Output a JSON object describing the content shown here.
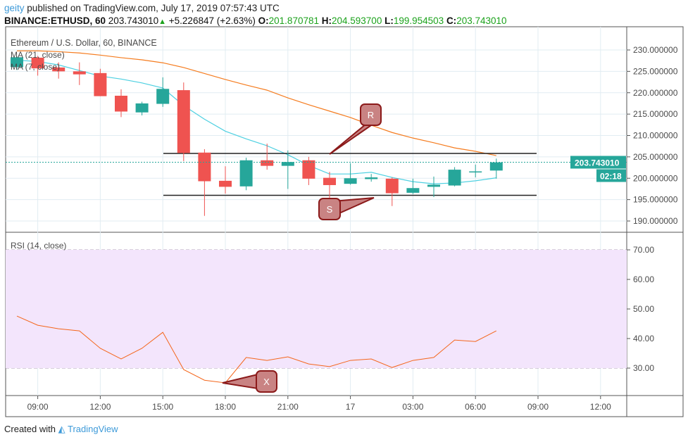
{
  "header": {
    "user": "geity",
    "published": "published on TradingView.com, July 17, 2019 07:57:43 UTC",
    "symbol": "BINANCE:ETHUSD, 60",
    "last": "203.743010",
    "change": "+5.226847 (+2.63%)",
    "o_label": "O:",
    "o": "201.870781",
    "h_label": "H:",
    "h": "204.593700",
    "l_label": "L:",
    "l": "199.954503",
    "c_label": "C:",
    "c": "203.743010"
  },
  "footer": {
    "created_with": "Created with",
    "brand": "TradingView"
  },
  "colors": {
    "up": "#26a69a",
    "down": "#ef5350",
    "ma21": "#f57c1f",
    "ma7": "#4dd0e1",
    "rsi": "#f4661b",
    "rsi_band": "#f3e5fc",
    "callout": "#c98383",
    "callout_border": "#8b1a1a"
  },
  "chart_data": [
    {
      "type": "candlestick",
      "title": "Ethereum / U.S. Dollar, 60, BINANCE",
      "legend": [
        "MA (21, close)",
        "MA (7, close)"
      ],
      "x": [
        "08:00",
        "09:00",
        "10:00",
        "11:00",
        "12:00",
        "13:00",
        "14:00",
        "15:00",
        "16:00",
        "17:00",
        "18:00",
        "19:00",
        "20:00",
        "21:00",
        "22:00",
        "23:00",
        "00:00",
        "01:00",
        "02:00",
        "03:00",
        "04:00",
        "05:00",
        "06:00",
        "07:00"
      ],
      "x_ticks": [
        "09:00",
        "12:00",
        "15:00",
        "18:00",
        "21:00",
        "17",
        "03:00",
        "06:00",
        "09:00",
        "12:00"
      ],
      "ohlc": [
        [
          226.0,
          228.5,
          225.3,
          228.3
        ],
        [
          228.2,
          228.6,
          224.0,
          225.7
        ],
        [
          225.9,
          227.1,
          223.3,
          225.0
        ],
        [
          225.0,
          227.1,
          221.8,
          224.3
        ],
        [
          224.6,
          225.6,
          219.2,
          219.2
        ],
        [
          219.3,
          220.8,
          214.3,
          215.6
        ],
        [
          215.4,
          217.9,
          214.7,
          217.5
        ],
        [
          217.4,
          223.6,
          216.7,
          220.9
        ],
        [
          220.6,
          222.4,
          204.0,
          205.9
        ],
        [
          206.0,
          206.8,
          191.2,
          199.3
        ],
        [
          199.4,
          202.8,
          196.4,
          198.0
        ],
        [
          198.1,
          204.8,
          197.2,
          204.2
        ],
        [
          204.2,
          208.1,
          202.0,
          202.9
        ],
        [
          202.9,
          206.5,
          197.5,
          203.8
        ],
        [
          204.2,
          205.0,
          198.4,
          199.9
        ],
        [
          200.1,
          201.5,
          195.3,
          198.4
        ],
        [
          198.7,
          203.5,
          198.5,
          200.0
        ],
        [
          199.8,
          201.0,
          199.2,
          200.2
        ],
        [
          199.9,
          200.2,
          193.5,
          196.5
        ],
        [
          196.6,
          199.9,
          196.3,
          197.7
        ],
        [
          198.0,
          200.4,
          195.6,
          198.5
        ],
        [
          198.3,
          202.6,
          198.1,
          202.0
        ],
        [
          201.6,
          203.2,
          200.2,
          201.6
        ],
        [
          201.8,
          204.6,
          199.9,
          203.7
        ]
      ],
      "ma21": [
        229.8,
        229.8,
        229.6,
        229.3,
        228.8,
        228.2,
        227.7,
        227.0,
        225.9,
        224.5,
        223.1,
        221.8,
        220.6,
        218.8,
        217.2,
        215.7,
        214.2,
        212.4,
        210.7,
        209.4,
        208.3,
        207.1,
        206.3,
        205.3
      ],
      "ma7": [
        227.6,
        227.3,
        226.5,
        225.2,
        223.9,
        223.2,
        222.3,
        221.1,
        217.0,
        213.8,
        211.0,
        209.2,
        207.6,
        205.5,
        203.0,
        201.0,
        201.0,
        201.4,
        200.2,
        199.2,
        198.7,
        198.9,
        199.4,
        200.1
      ],
      "last_price": "203.743010",
      "countdown": "02:18",
      "y_ticks": [
        "230.000000",
        "225.000000",
        "220.000000",
        "215.000000",
        "210.000000",
        "205.000000",
        "200.000000",
        "195.000000",
        "190.000000"
      ],
      "ylim": [
        187.5,
        232.5
      ],
      "resistance": 205.8,
      "support": 196.0,
      "annotations": [
        "R",
        "S"
      ]
    },
    {
      "type": "line",
      "title": "RSI (14, close)",
      "values": [
        47.6,
        44.5,
        43.3,
        42.6,
        36.7,
        33.1,
        36.7,
        42.1,
        29.5,
        25.9,
        25.0,
        33.6,
        32.6,
        33.8,
        31.4,
        30.5,
        32.6,
        33.1,
        30.2,
        32.6,
        33.6,
        39.5,
        39.0,
        42.6
      ],
      "y_ticks": [
        "70.00",
        "60.00",
        "50.00",
        "40.00",
        "30.00"
      ],
      "band": [
        30,
        70
      ],
      "ylim": [
        20,
        73
      ],
      "annotations": [
        "X"
      ]
    }
  ]
}
